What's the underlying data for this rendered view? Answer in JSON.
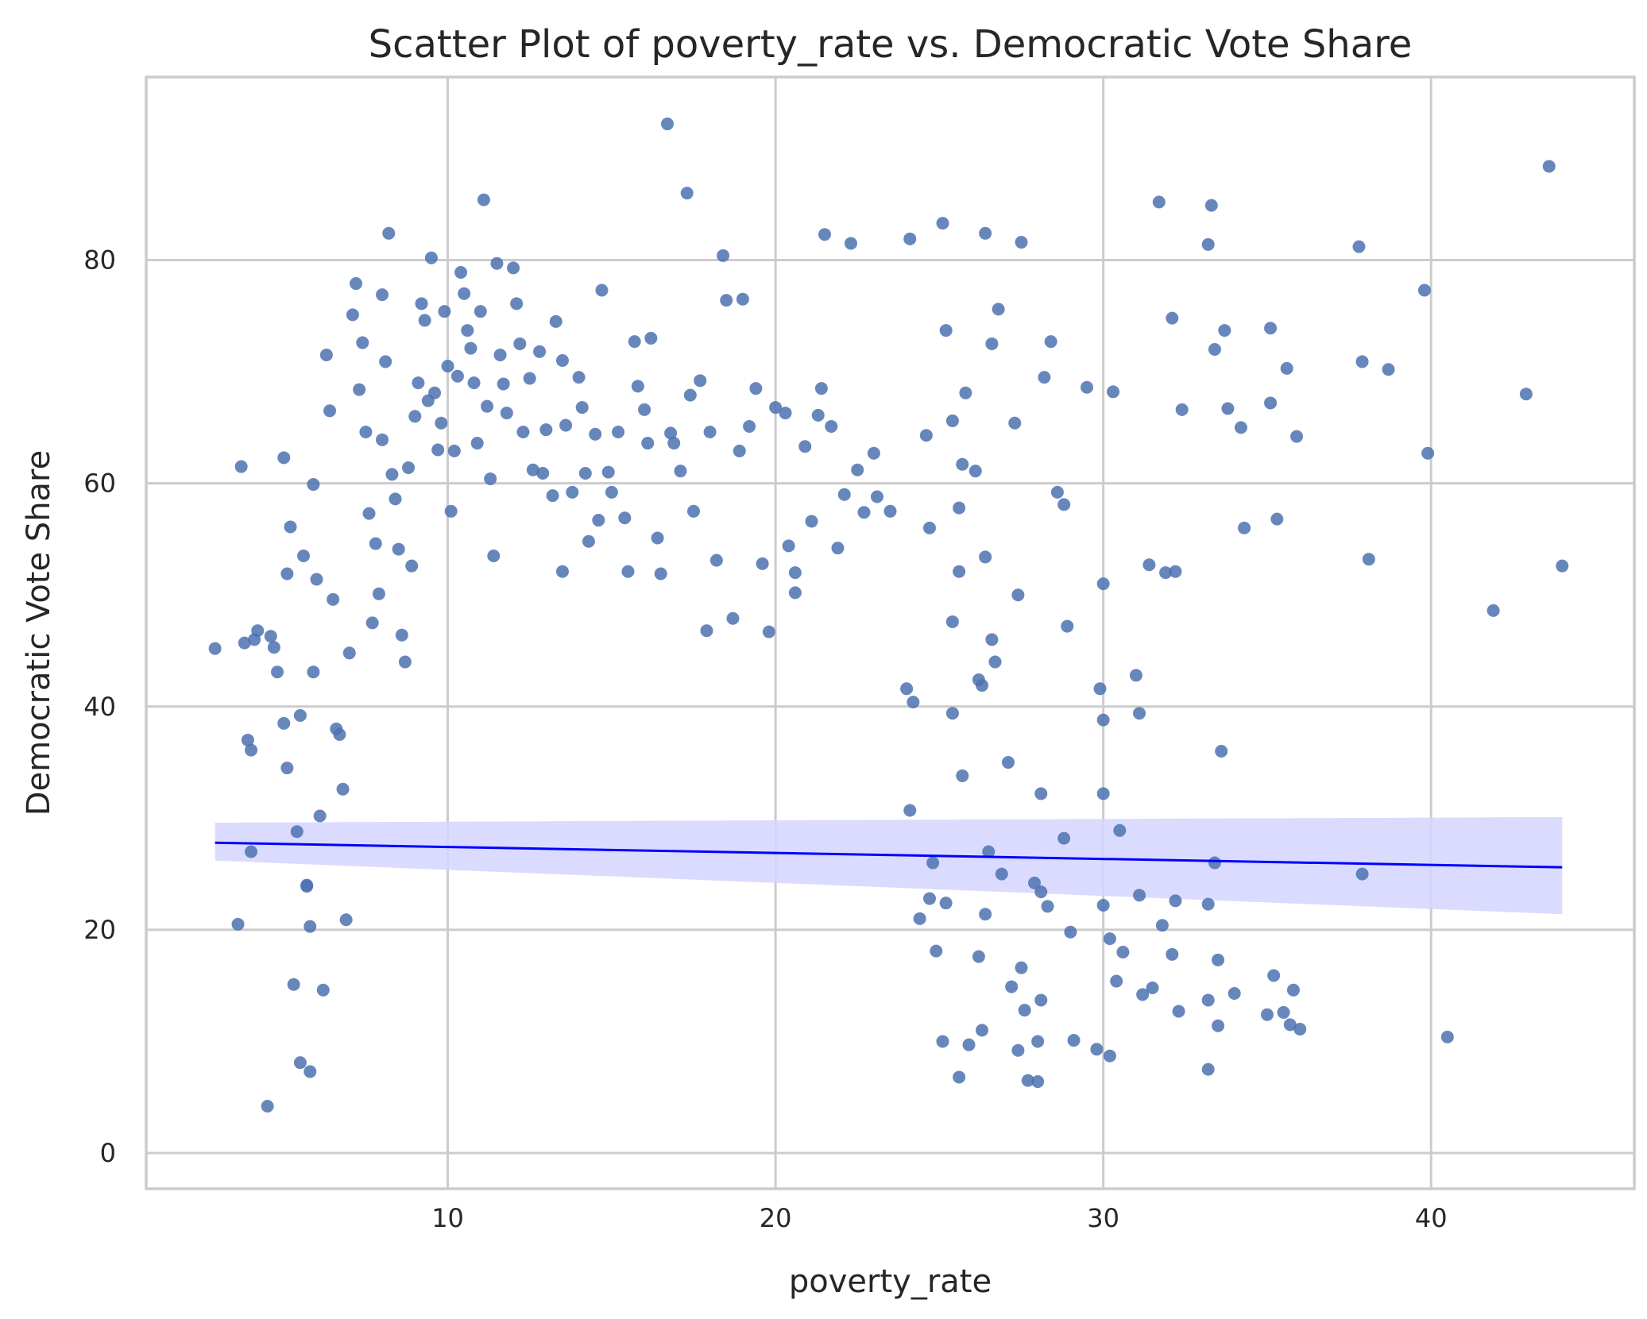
{
  "chart_data": {
    "type": "scatter",
    "title": "Scatter Plot of poverty_rate vs. Democratic Vote Share",
    "xlabel": "poverty_rate",
    "ylabel": "Democratic Vote Share",
    "xlim": [
      0.8,
      46.2
    ],
    "ylim": [
      -3.2,
      96.4
    ],
    "xticks": [
      10,
      20,
      30,
      40
    ],
    "yticks": [
      0,
      20,
      40,
      60,
      80
    ],
    "grid": true,
    "legend": "none",
    "colors": {
      "points": "#4c72b0",
      "regression_line": "#0000ff",
      "confidence_band": "#d5d5ff",
      "grid": "#cccccc",
      "frame": "#cccccc",
      "text": "#262626"
    },
    "regression": {
      "x": [
        2.9,
        44.0
      ],
      "y": [
        27.8,
        25.6
      ],
      "ci_low": [
        26.2,
        21.4
      ],
      "ci_high": [
        29.6,
        30.1
      ]
    },
    "points": [
      [
        2.9,
        45.2
      ],
      [
        3.6,
        20.5
      ],
      [
        3.7,
        61.5
      ],
      [
        3.8,
        45.7
      ],
      [
        3.9,
        37.0
      ],
      [
        4.0,
        36.1
      ],
      [
        4.0,
        27.0
      ],
      [
        4.1,
        46.0
      ],
      [
        4.2,
        46.8
      ],
      [
        4.5,
        4.2
      ],
      [
        4.6,
        46.3
      ],
      [
        4.7,
        45.3
      ],
      [
        4.8,
        43.1
      ],
      [
        5.0,
        62.3
      ],
      [
        5.0,
        38.5
      ],
      [
        5.1,
        34.5
      ],
      [
        5.1,
        51.9
      ],
      [
        5.2,
        56.1
      ],
      [
        5.3,
        15.1
      ],
      [
        5.4,
        28.8
      ],
      [
        5.5,
        8.1
      ],
      [
        5.5,
        39.2
      ],
      [
        5.6,
        53.5
      ],
      [
        5.7,
        24.0
      ],
      [
        5.7,
        23.9
      ],
      [
        5.8,
        20.3
      ],
      [
        5.8,
        7.3
      ],
      [
        5.9,
        43.1
      ],
      [
        5.9,
        59.9
      ],
      [
        6.0,
        51.4
      ],
      [
        6.1,
        30.2
      ],
      [
        6.2,
        14.6
      ],
      [
        6.3,
        71.5
      ],
      [
        6.4,
        66.5
      ],
      [
        6.5,
        49.6
      ],
      [
        6.6,
        38.0
      ],
      [
        6.7,
        37.5
      ],
      [
        6.8,
        32.6
      ],
      [
        6.9,
        20.9
      ],
      [
        7.0,
        44.8
      ],
      [
        7.1,
        75.1
      ],
      [
        7.2,
        77.9
      ],
      [
        7.3,
        68.4
      ],
      [
        7.4,
        72.6
      ],
      [
        7.5,
        64.6
      ],
      [
        7.6,
        57.3
      ],
      [
        7.7,
        47.5
      ],
      [
        7.8,
        54.6
      ],
      [
        7.9,
        50.1
      ],
      [
        8.0,
        63.9
      ],
      [
        8.0,
        76.9
      ],
      [
        8.1,
        70.9
      ],
      [
        8.2,
        82.4
      ],
      [
        8.3,
        60.8
      ],
      [
        8.4,
        58.6
      ],
      [
        8.5,
        54.1
      ],
      [
        8.6,
        46.4
      ],
      [
        8.7,
        44.0
      ],
      [
        8.8,
        61.4
      ],
      [
        8.9,
        52.6
      ],
      [
        9.0,
        66.0
      ],
      [
        9.1,
        69.0
      ],
      [
        9.2,
        76.1
      ],
      [
        9.3,
        74.6
      ],
      [
        9.4,
        67.4
      ],
      [
        9.5,
        80.2
      ],
      [
        9.6,
        68.1
      ],
      [
        9.7,
        63.0
      ],
      [
        9.8,
        65.4
      ],
      [
        9.9,
        75.4
      ],
      [
        10.0,
        70.5
      ],
      [
        10.1,
        57.5
      ],
      [
        10.2,
        62.9
      ],
      [
        10.3,
        69.6
      ],
      [
        10.4,
        78.9
      ],
      [
        10.5,
        77.0
      ],
      [
        10.6,
        73.7
      ],
      [
        10.7,
        72.1
      ],
      [
        10.8,
        69.0
      ],
      [
        10.9,
        63.6
      ],
      [
        11.0,
        75.4
      ],
      [
        11.1,
        85.4
      ],
      [
        11.2,
        66.9
      ],
      [
        11.3,
        60.4
      ],
      [
        11.4,
        53.5
      ],
      [
        11.5,
        79.7
      ],
      [
        11.6,
        71.5
      ],
      [
        11.7,
        68.9
      ],
      [
        11.8,
        66.3
      ],
      [
        12.0,
        79.3
      ],
      [
        12.1,
        76.1
      ],
      [
        12.2,
        72.5
      ],
      [
        12.3,
        64.6
      ],
      [
        12.5,
        69.4
      ],
      [
        12.6,
        61.2
      ],
      [
        12.8,
        71.8
      ],
      [
        12.9,
        60.9
      ],
      [
        13.0,
        64.8
      ],
      [
        13.2,
        58.9
      ],
      [
        13.3,
        74.5
      ],
      [
        13.5,
        71.0
      ],
      [
        13.6,
        65.2
      ],
      [
        13.8,
        59.2
      ],
      [
        14.0,
        69.5
      ],
      [
        14.1,
        66.8
      ],
      [
        14.2,
        60.9
      ],
      [
        14.3,
        54.8
      ],
      [
        14.5,
        64.4
      ],
      [
        14.6,
        56.7
      ],
      [
        14.7,
        77.3
      ],
      [
        14.9,
        61.0
      ],
      [
        15.0,
        59.2
      ],
      [
        15.2,
        64.6
      ],
      [
        15.4,
        56.9
      ],
      [
        15.5,
        52.1
      ],
      [
        15.7,
        72.7
      ],
      [
        15.8,
        68.7
      ],
      [
        16.0,
        66.6
      ],
      [
        16.1,
        63.6
      ],
      [
        16.2,
        73.0
      ],
      [
        16.4,
        55.1
      ],
      [
        16.5,
        51.9
      ],
      [
        16.7,
        92.2
      ],
      [
        16.8,
        64.5
      ],
      [
        16.9,
        63.6
      ],
      [
        17.1,
        61.1
      ],
      [
        17.3,
        86.0
      ],
      [
        17.4,
        67.9
      ],
      [
        17.5,
        57.5
      ],
      [
        17.7,
        69.2
      ],
      [
        17.9,
        46.8
      ],
      [
        18.0,
        64.6
      ],
      [
        18.2,
        53.1
      ],
      [
        18.4,
        80.4
      ],
      [
        18.5,
        76.4
      ],
      [
        18.7,
        47.9
      ],
      [
        18.9,
        62.9
      ],
      [
        19.0,
        76.5
      ],
      [
        19.2,
        65.1
      ],
      [
        19.4,
        68.5
      ],
      [
        19.6,
        52.8
      ],
      [
        19.8,
        46.7
      ],
      [
        20.0,
        66.8
      ],
      [
        20.3,
        66.3
      ],
      [
        20.4,
        54.4
      ],
      [
        20.6,
        50.2
      ],
      [
        20.9,
        63.3
      ],
      [
        21.1,
        56.6
      ],
      [
        21.3,
        66.1
      ],
      [
        21.4,
        68.5
      ],
      [
        21.5,
        82.3
      ],
      [
        21.7,
        65.1
      ],
      [
        21.9,
        54.2
      ],
      [
        22.1,
        59.0
      ],
      [
        22.3,
        81.5
      ],
      [
        22.5,
        61.2
      ],
      [
        22.7,
        57.4
      ],
      [
        23.0,
        62.7
      ],
      [
        23.1,
        58.8
      ],
      [
        23.5,
        57.5
      ],
      [
        24.1,
        81.9
      ],
      [
        24.6,
        64.3
      ],
      [
        24.7,
        56.0
      ],
      [
        25.1,
        83.3
      ],
      [
        25.2,
        73.7
      ],
      [
        25.4,
        65.6
      ],
      [
        25.6,
        57.8
      ],
      [
        25.7,
        61.7
      ],
      [
        25.8,
        68.1
      ],
      [
        26.1,
        61.1
      ],
      [
        26.4,
        82.4
      ],
      [
        26.6,
        72.5
      ],
      [
        26.8,
        75.6
      ],
      [
        27.3,
        65.4
      ],
      [
        27.5,
        81.6
      ],
      [
        28.2,
        69.5
      ],
      [
        28.4,
        72.7
      ],
      [
        28.6,
        59.2
      ],
      [
        28.8,
        58.1
      ],
      [
        29.5,
        68.6
      ],
      [
        30.3,
        68.2
      ],
      [
        31.4,
        52.7
      ],
      [
        31.7,
        85.2
      ],
      [
        32.1,
        74.8
      ],
      [
        32.2,
        52.1
      ],
      [
        32.4,
        66.6
      ],
      [
        33.2,
        81.4
      ],
      [
        33.3,
        84.9
      ],
      [
        33.4,
        72.0
      ],
      [
        33.7,
        73.7
      ],
      [
        33.8,
        66.7
      ],
      [
        34.2,
        65.0
      ],
      [
        34.3,
        56.0
      ],
      [
        35.1,
        73.9
      ],
      [
        35.1,
        67.2
      ],
      [
        35.3,
        56.8
      ],
      [
        35.6,
        70.3
      ],
      [
        35.9,
        64.2
      ],
      [
        37.8,
        81.2
      ],
      [
        37.9,
        70.9
      ],
      [
        38.1,
        53.2
      ],
      [
        38.7,
        70.2
      ],
      [
        39.8,
        77.3
      ],
      [
        39.9,
        62.7
      ],
      [
        41.9,
        48.6
      ],
      [
        42.9,
        68.0
      ],
      [
        43.6,
        88.4
      ],
      [
        44.0,
        52.6
      ],
      [
        13.5,
        52.1
      ],
      [
        20.6,
        52.0
      ],
      [
        25.6,
        52.1
      ],
      [
        26.4,
        53.4
      ],
      [
        27.4,
        50.0
      ],
      [
        28.9,
        47.2
      ],
      [
        30.0,
        51.0
      ],
      [
        31.9,
        52.0
      ],
      [
        30.0,
        32.2
      ],
      [
        30.0,
        22.2
      ],
      [
        30.0,
        38.8
      ],
      [
        29.9,
        41.6
      ],
      [
        30.2,
        19.2
      ],
      [
        30.4,
        15.4
      ],
      [
        30.6,
        18.0
      ],
      [
        30.5,
        28.9
      ],
      [
        31.0,
        42.8
      ],
      [
        31.1,
        39.4
      ],
      [
        31.1,
        23.1
      ],
      [
        31.2,
        14.2
      ],
      [
        31.5,
        14.8
      ],
      [
        31.8,
        20.4
      ],
      [
        32.1,
        17.8
      ],
      [
        32.2,
        22.6
      ],
      [
        32.3,
        12.7
      ],
      [
        33.2,
        22.3
      ],
      [
        33.2,
        7.5
      ],
      [
        33.2,
        13.7
      ],
      [
        33.4,
        26.0
      ],
      [
        33.5,
        17.3
      ],
      [
        33.5,
        11.4
      ],
      [
        33.6,
        36.0
      ],
      [
        34.0,
        14.3
      ],
      [
        35.0,
        12.4
      ],
      [
        35.2,
        15.9
      ],
      [
        35.5,
        12.6
      ],
      [
        35.7,
        11.5
      ],
      [
        35.8,
        14.6
      ],
      [
        36.0,
        11.1
      ],
      [
        37.9,
        25.0
      ],
      [
        40.5,
        10.4
      ],
      [
        29.1,
        10.1
      ],
      [
        29.8,
        9.3
      ],
      [
        30.2,
        8.7
      ],
      [
        28.3,
        22.1
      ],
      [
        28.1,
        13.7
      ],
      [
        28.0,
        6.4
      ],
      [
        28.0,
        10.0
      ],
      [
        28.1,
        23.4
      ],
      [
        28.1,
        32.2
      ],
      [
        28.8,
        28.2
      ],
      [
        29.0,
        19.8
      ],
      [
        27.9,
        24.2
      ],
      [
        27.7,
        6.5
      ],
      [
        27.6,
        12.8
      ],
      [
        27.5,
        16.6
      ],
      [
        27.4,
        9.2
      ],
      [
        27.2,
        14.9
      ],
      [
        27.1,
        35.0
      ],
      [
        26.7,
        44.0
      ],
      [
        26.6,
        46.0
      ],
      [
        26.5,
        27.0
      ],
      [
        26.9,
        25.0
      ],
      [
        26.4,
        21.4
      ],
      [
        26.3,
        11.0
      ],
      [
        26.2,
        17.6
      ],
      [
        26.2,
        42.4
      ],
      [
        26.3,
        41.9
      ],
      [
        25.7,
        33.8
      ],
      [
        25.6,
        6.8
      ],
      [
        25.9,
        9.7
      ],
      [
        25.4,
        39.4
      ],
      [
        25.4,
        47.6
      ],
      [
        25.2,
        22.4
      ],
      [
        25.1,
        10.0
      ],
      [
        24.9,
        18.1
      ],
      [
        24.8,
        26.0
      ],
      [
        24.7,
        22.8
      ],
      [
        24.4,
        21.0
      ],
      [
        24.2,
        40.4
      ],
      [
        24.0,
        41.6
      ],
      [
        24.1,
        30.7
      ]
    ]
  }
}
